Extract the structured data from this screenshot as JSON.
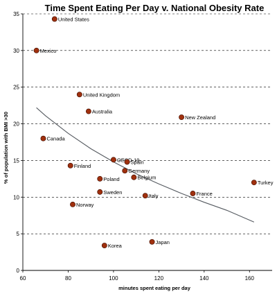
{
  "chart_data": {
    "type": "scatter",
    "title": "Time Spent Eating Per Day v. National Obesity Rate",
    "xlabel": "minutes spent eating per day",
    "ylabel": "% of population with BMI >30",
    "xlim": [
      60,
      170
    ],
    "ylim": [
      0,
      35
    ],
    "xticks": [
      "60",
      "80",
      "100",
      "120",
      "140",
      "160"
    ],
    "yticks": [
      "0",
      "5",
      "10",
      "15",
      "20",
      "25",
      "30",
      "35"
    ],
    "grid": "horizontal",
    "marker_color": "#a0300e",
    "trendline_color": "#555a60",
    "points": [
      {
        "label": "United States",
        "x": 74,
        "y": 34.3
      },
      {
        "label": "Mexico",
        "x": 66,
        "y": 30.0
      },
      {
        "label": "United Kingdom",
        "x": 85,
        "y": 24.0
      },
      {
        "label": "Australia",
        "x": 89,
        "y": 21.7
      },
      {
        "label": "New Zealand",
        "x": 130,
        "y": 20.9
      },
      {
        "label": "Canada",
        "x": 69,
        "y": 18.0
      },
      {
        "label": "OECD-19",
        "x": 100,
        "y": 15.1
      },
      {
        "label": "Spain",
        "x": 106,
        "y": 14.8
      },
      {
        "label": "Finland",
        "x": 81,
        "y": 14.3
      },
      {
        "label": "Germany",
        "x": 105,
        "y": 13.6
      },
      {
        "label": "Poland",
        "x": 94,
        "y": 12.5
      },
      {
        "label": "Belgium",
        "x": 109,
        "y": 12.7
      },
      {
        "label": "Turkey",
        "x": 162,
        "y": 12.0
      },
      {
        "label": "Sweden",
        "x": 94,
        "y": 10.7
      },
      {
        "label": "France",
        "x": 135,
        "y": 10.5
      },
      {
        "label": "Italy",
        "x": 114,
        "y": 10.2
      },
      {
        "label": "Norway",
        "x": 82,
        "y": 9.0
      },
      {
        "label": "Japan",
        "x": 117,
        "y": 3.9
      },
      {
        "label": "Korea",
        "x": 96,
        "y": 3.4
      }
    ],
    "trendline": {
      "x": [
        66,
        70,
        80,
        90,
        100,
        110,
        120,
        130,
        140,
        150,
        162
      ],
      "y": [
        22.2,
        21.1,
        18.7,
        16.6,
        14.8,
        13.2,
        11.8,
        10.5,
        9.3,
        8.2,
        6.6
      ]
    }
  }
}
